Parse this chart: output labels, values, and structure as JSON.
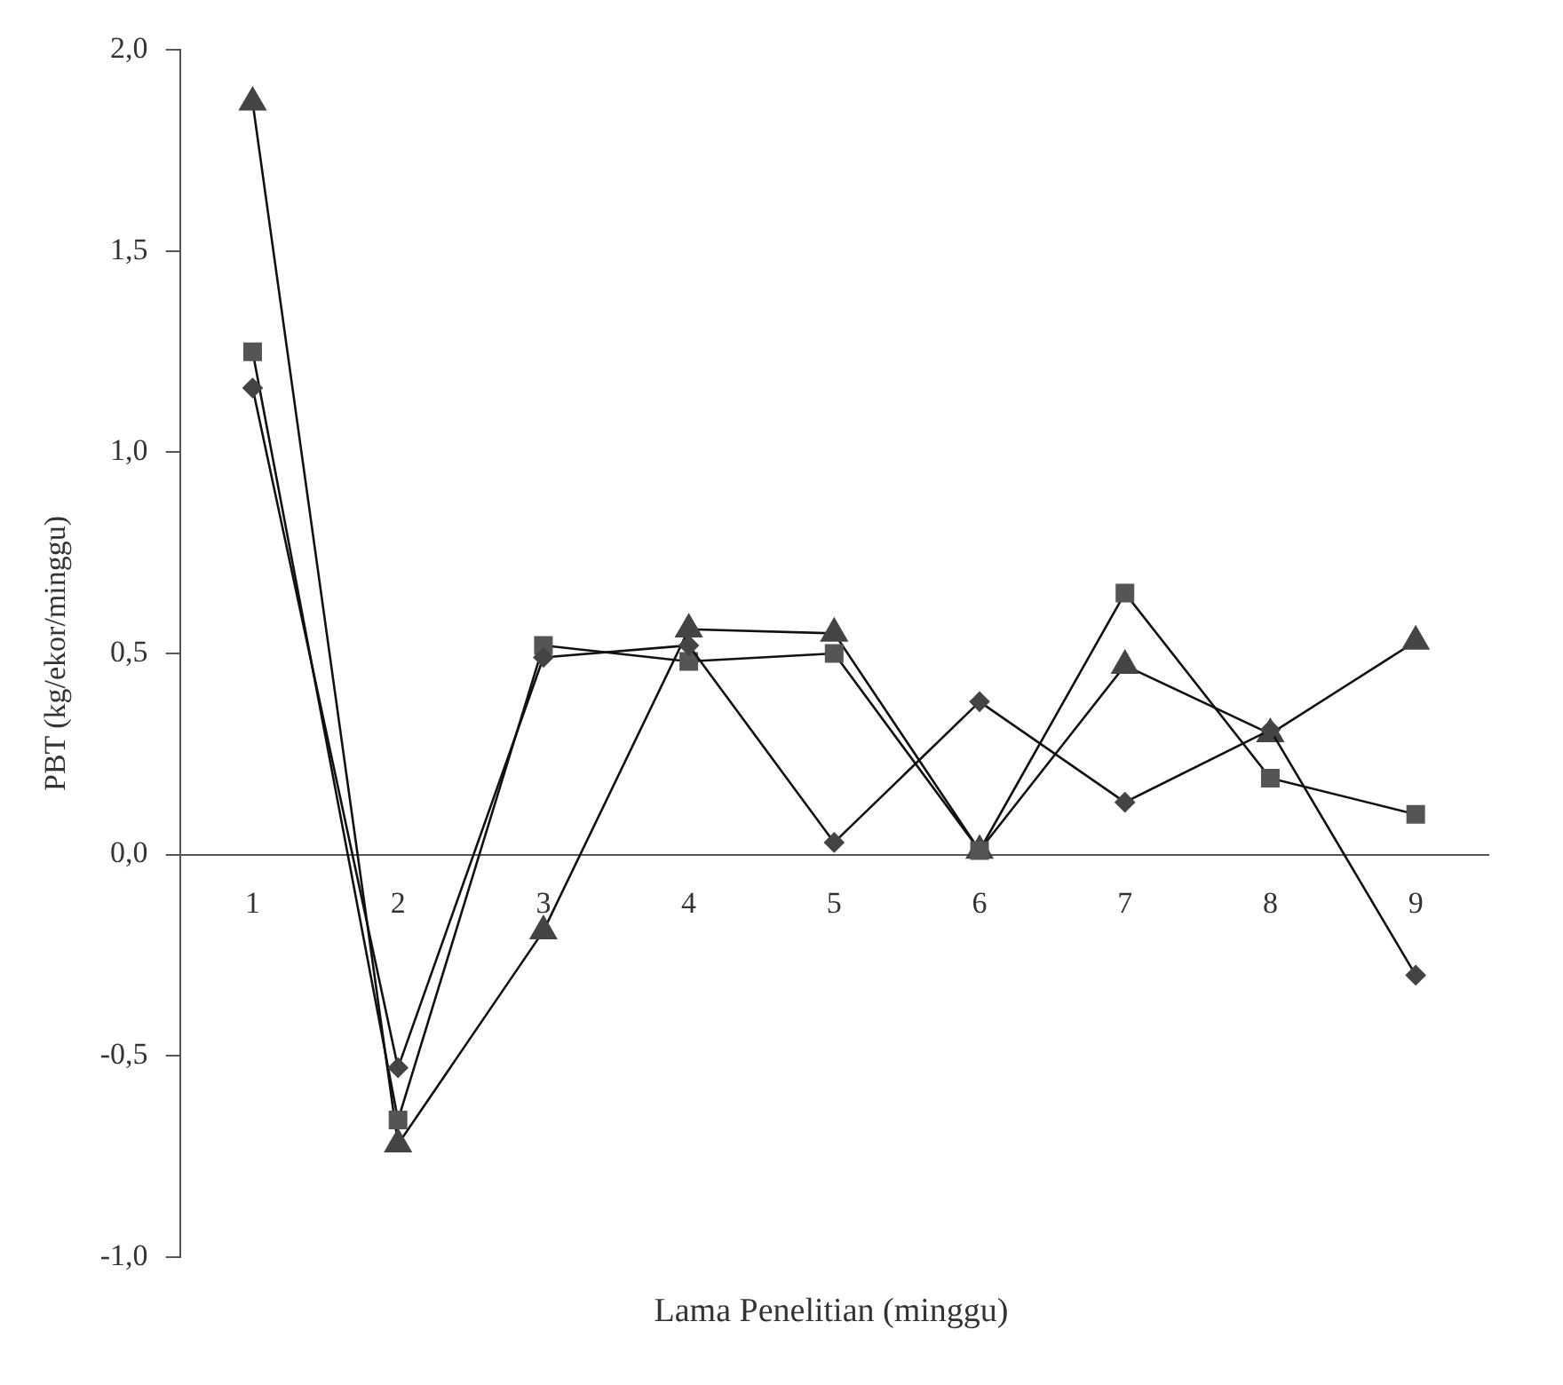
{
  "chart_data": {
    "type": "line",
    "xlabel": "Lama Penelitian (minggu)",
    "ylabel": "PBT (kg/ekor/minggu)",
    "categories": [
      "1",
      "2",
      "3",
      "4",
      "5",
      "6",
      "7",
      "8",
      "9"
    ],
    "series": [
      {
        "color": "#444444",
        "marker": "diamond",
        "values": [
          1.16,
          -0.53,
          0.49,
          0.52,
          0.03,
          0.38,
          0.13,
          0.31,
          -0.3
        ]
      },
      {
        "color": "#555555",
        "marker": "square",
        "values": [
          1.25,
          -0.66,
          0.52,
          0.48,
          0.5,
          0.01,
          0.65,
          0.19,
          0.1
        ]
      },
      {
        "color": "#444444",
        "marker": "triangle",
        "values": [
          1.87,
          -0.72,
          -0.19,
          0.56,
          0.55,
          0.01,
          0.47,
          0.3,
          0.53
        ]
      }
    ],
    "ylim": [
      -1.0,
      2.0
    ],
    "yticks": [
      {
        "value": -1.0,
        "label": "-1,0"
      },
      {
        "value": -0.5,
        "label": "-0,5"
      },
      {
        "value": 0,
        "label": "0,0"
      },
      {
        "value": 0.5,
        "label": "0,5"
      },
      {
        "value": 1.0,
        "label": "1,0"
      },
      {
        "value": 1.5,
        "label": "1,5"
      },
      {
        "value": 2.0,
        "label": "2,0"
      }
    ],
    "grid": false,
    "legend": false
  }
}
